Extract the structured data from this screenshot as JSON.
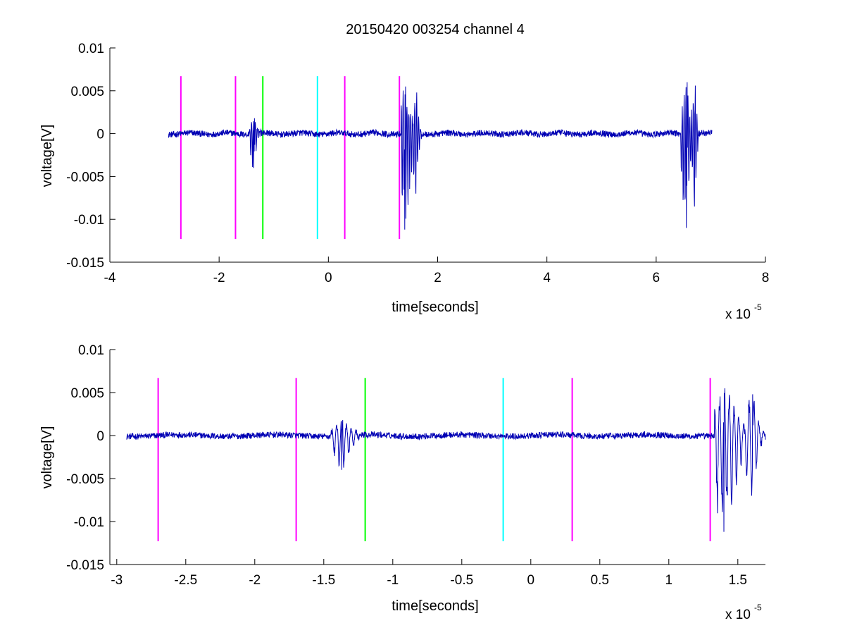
{
  "figure": {
    "title": "20150420 003254 channel 4"
  },
  "chart_data": [
    {
      "type": "line",
      "name": "full-range-trace",
      "xlabel": "time[seconds]",
      "ylabel": "voltage[V]",
      "x_multiplier_label": "x 10",
      "x_multiplier_exponent": "-5",
      "xlim": [
        -4,
        8
      ],
      "ylim": [
        -0.015,
        0.01
      ],
      "xticks": [
        -4,
        -2,
        0,
        2,
        4,
        6,
        8
      ],
      "xtick_labels": [
        "-4",
        "-2",
        "0",
        "2",
        "4",
        "6",
        "8"
      ],
      "yticks": [
        -0.015,
        -0.01,
        -0.005,
        0,
        0.005,
        0.01
      ],
      "ytick_labels": [
        "-0.015",
        "-0.01",
        "-0.005",
        "0",
        "0.005",
        "0.01"
      ],
      "grid": false,
      "trace": {
        "color": "#0000b4",
        "x_range": [
          -2.93,
          7.02
        ],
        "baseline": 0.0,
        "noise_amplitude": 0.0004,
        "bursts": [
          {
            "x": -1.37,
            "extent": [
              -1.45,
              -1.22
            ],
            "min": -0.004,
            "max": 0.0018
          },
          {
            "x": 1.4,
            "extent": [
              1.33,
              1.75
            ],
            "min": -0.0112,
            "max": 0.0055
          },
          {
            "x": 1.6,
            "extent": [
              1.55,
              1.72
            ],
            "min": -0.007,
            "max": 0.0048
          },
          {
            "x": 6.55,
            "extent": [
              6.45,
              6.75
            ],
            "min": -0.011,
            "max": 0.006
          },
          {
            "x": 6.7,
            "extent": [
              6.62,
              6.78
            ],
            "min": -0.0085,
            "max": 0.0056
          }
        ]
      },
      "markers": [
        {
          "x": -2.7,
          "color": "#ff00ff"
        },
        {
          "x": -1.7,
          "color": "#ff00ff"
        },
        {
          "x": -1.2,
          "color": "#00ff00"
        },
        {
          "x": -0.2,
          "color": "#00ffff"
        },
        {
          "x": 0.3,
          "color": "#ff00ff"
        },
        {
          "x": 1.3,
          "color": "#ff00ff"
        }
      ],
      "marker_y_range": [
        -0.0123,
        0.0067
      ]
    },
    {
      "type": "line",
      "name": "zoomed-trace",
      "xlabel": "time[seconds]",
      "ylabel": "voltage[V]",
      "x_multiplier_label": "x 10",
      "x_multiplier_exponent": "-5",
      "xlim": [
        -3.05,
        1.7
      ],
      "ylim": [
        -0.015,
        0.01
      ],
      "xticks": [
        -3,
        -2.5,
        -2,
        -1.5,
        -1,
        -0.5,
        0,
        0.5,
        1,
        1.5
      ],
      "xtick_labels": [
        "-3",
        "-2.5",
        "-2",
        "-1.5",
        "-1",
        "-0.5",
        "0",
        "0.5",
        "1",
        "1.5"
      ],
      "yticks": [
        -0.015,
        -0.01,
        -0.005,
        0,
        0.005,
        0.01
      ],
      "ytick_labels": [
        "-0.015",
        "-0.01",
        "-0.005",
        "0",
        "0.005",
        "0.01"
      ],
      "grid": false,
      "trace": {
        "color": "#0000b4",
        "x_range": [
          -2.93,
          1.7
        ],
        "baseline": 0.0,
        "noise_amplitude": 0.0004,
        "bursts": [
          {
            "x": -1.37,
            "extent": [
              -1.45,
              -1.22
            ],
            "min": -0.004,
            "max": 0.0018
          },
          {
            "x": 1.4,
            "extent": [
              1.33,
              1.7
            ],
            "min": -0.0112,
            "max": 0.0055
          },
          {
            "x": 1.6,
            "extent": [
              1.55,
              1.7
            ],
            "min": -0.007,
            "max": 0.0048
          }
        ]
      },
      "markers": [
        {
          "x": -2.7,
          "color": "#ff00ff"
        },
        {
          "x": -1.7,
          "color": "#ff00ff"
        },
        {
          "x": -1.2,
          "color": "#00ff00"
        },
        {
          "x": -0.2,
          "color": "#00ffff"
        },
        {
          "x": 0.3,
          "color": "#ff00ff"
        },
        {
          "x": 1.3,
          "color": "#ff00ff"
        }
      ],
      "marker_y_range": [
        -0.0123,
        0.0067
      ]
    }
  ]
}
